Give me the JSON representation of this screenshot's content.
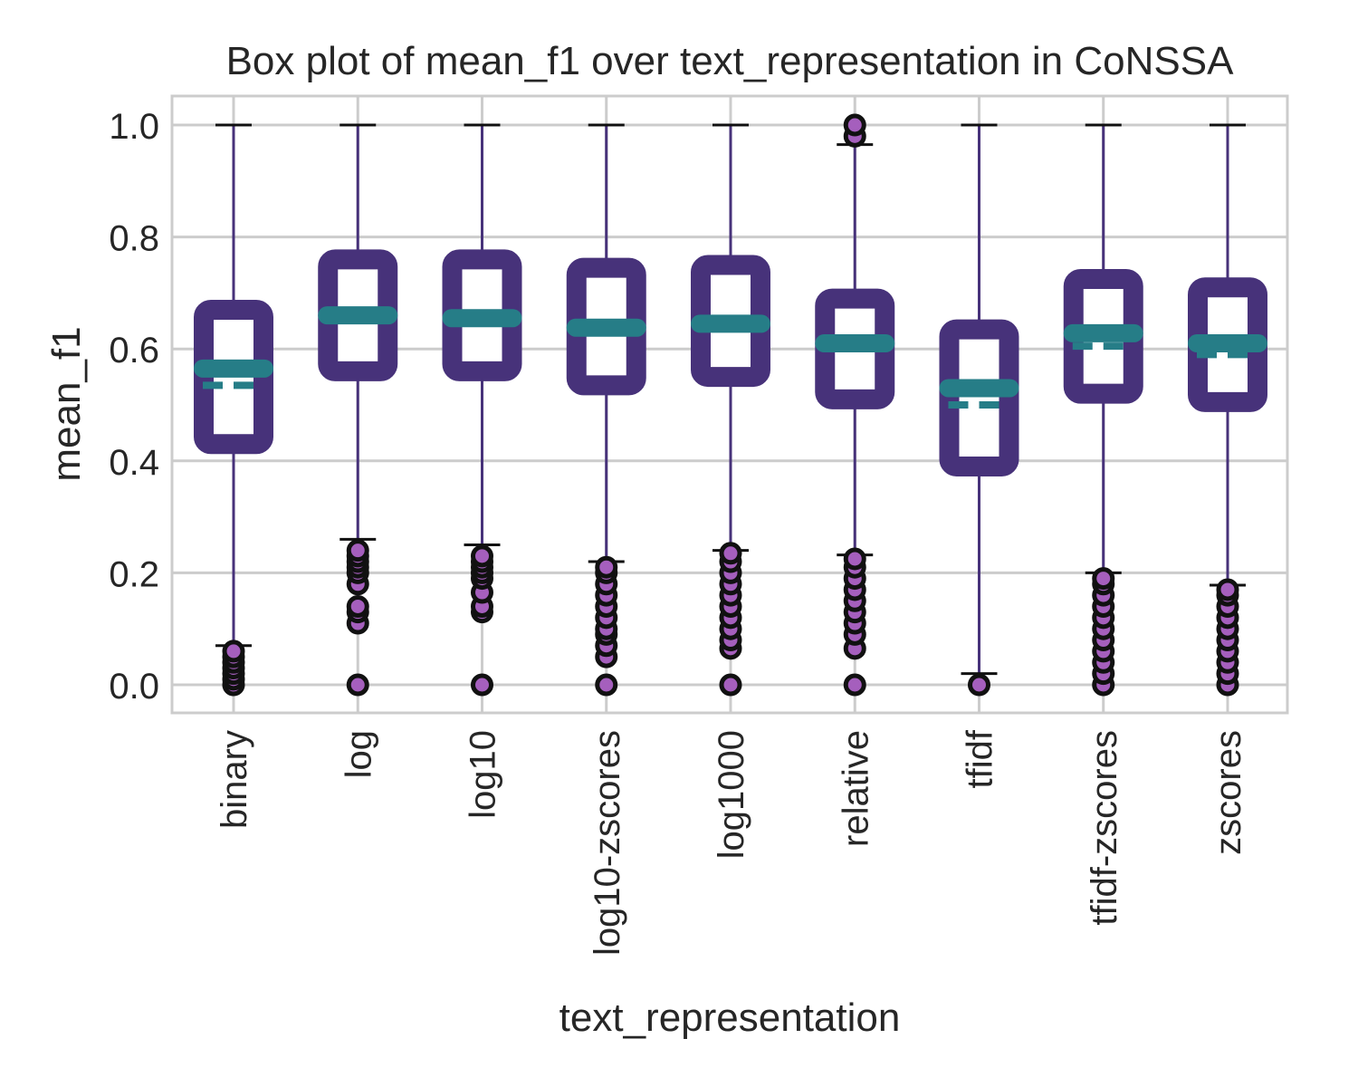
{
  "chart_data": {
    "type": "box",
    "title": "Box plot of mean_f1 over text_representation in CoNSSA",
    "xlabel": "text_representation",
    "ylabel": "mean_f1",
    "ylim": [
      -0.05,
      1.05
    ],
    "yticks": [
      0.0,
      0.2,
      0.4,
      0.6,
      0.8,
      1.0
    ],
    "ytick_labels": [
      "0.0",
      "0.2",
      "0.4",
      "0.6",
      "0.8",
      "1.0"
    ],
    "grid": true,
    "categories": [
      "binary",
      "log",
      "log10",
      "log10-zscores",
      "log1000",
      "relative",
      "tfidf",
      "tfidf-zscores",
      "zscores"
    ],
    "boxes": [
      {
        "q1": 0.43,
        "q3": 0.67,
        "median": 0.565,
        "mean": 0.535,
        "whisker_low": 0.07,
        "whisker_high": 1.0,
        "outliers": [
          0.0,
          0.01,
          0.02,
          0.03,
          0.04,
          0.05,
          0.06
        ]
      },
      {
        "q1": 0.56,
        "q3": 0.76,
        "median": 0.66,
        "mean": 0.66,
        "whisker_low": 0.26,
        "whisker_high": 1.0,
        "outliers": [
          0.0,
          0.11,
          0.13,
          0.14,
          0.18,
          0.2,
          0.21,
          0.22,
          0.23,
          0.24
        ]
      },
      {
        "q1": 0.56,
        "q3": 0.76,
        "median": 0.655,
        "mean": 0.655,
        "whisker_low": 0.25,
        "whisker_high": 1.0,
        "outliers": [
          0.0,
          0.13,
          0.14,
          0.165,
          0.19,
          0.2,
          0.21,
          0.22,
          0.23
        ]
      },
      {
        "q1": 0.535,
        "q3": 0.745,
        "median": 0.638,
        "mean": 0.638,
        "whisker_low": 0.22,
        "whisker_high": 1.0,
        "outliers": [
          0.0,
          0.05,
          0.07,
          0.09,
          0.1,
          0.12,
          0.14,
          0.16,
          0.18,
          0.2,
          0.21
        ]
      },
      {
        "q1": 0.55,
        "q3": 0.75,
        "median": 0.645,
        "mean": 0.645,
        "whisker_low": 0.24,
        "whisker_high": 1.0,
        "outliers": [
          0.0,
          0.065,
          0.08,
          0.1,
          0.12,
          0.14,
          0.16,
          0.18,
          0.2,
          0.22,
          0.235
        ]
      },
      {
        "q1": 0.51,
        "q3": 0.69,
        "median": 0.61,
        "mean": 0.61,
        "whisker_low": 0.232,
        "whisker_high": 0.965,
        "outliers": [
          0.0,
          0.065,
          0.09,
          0.11,
          0.13,
          0.15,
          0.17,
          0.19,
          0.21,
          0.225,
          0.98,
          1.0
        ]
      },
      {
        "q1": 0.39,
        "q3": 0.635,
        "median": 0.53,
        "mean": 0.5,
        "whisker_low": 0.02,
        "whisker_high": 1.0,
        "outliers": [
          0.0
        ]
      },
      {
        "q1": 0.52,
        "q3": 0.725,
        "median": 0.628,
        "mean": 0.605,
        "whisker_low": 0.2,
        "whisker_high": 1.0,
        "outliers": [
          0.0,
          0.02,
          0.04,
          0.06,
          0.08,
          0.1,
          0.12,
          0.14,
          0.16,
          0.18,
          0.19
        ]
      },
      {
        "q1": 0.505,
        "q3": 0.71,
        "median": 0.61,
        "mean": 0.59,
        "whisker_low": 0.178,
        "whisker_high": 1.0,
        "outliers": [
          0.0,
          0.02,
          0.04,
          0.06,
          0.08,
          0.1,
          0.12,
          0.14,
          0.16,
          0.17
        ]
      }
    ],
    "colors": {
      "box": "#47327a",
      "whisker": "#47327a",
      "median": "#267d87",
      "mean": "#267d87",
      "outlier_fill": "#a55fbd",
      "outlier_edge": "#111111",
      "grid": "#cccccc",
      "frame": "#cccccc"
    }
  }
}
